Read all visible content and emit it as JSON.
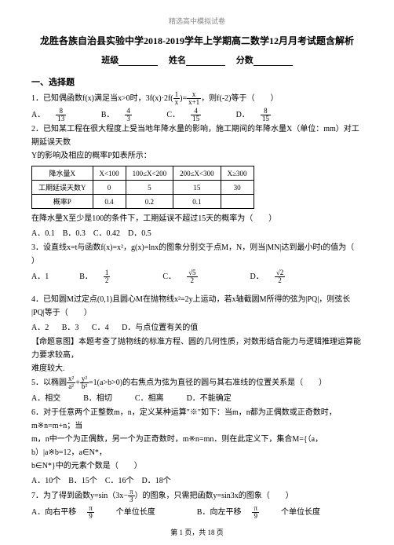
{
  "header": "精选高中模拟试卷",
  "title": "龙胜各族自治县实验中学2018-2019学年上学期高二数学12月月考试题含解析",
  "info": {
    "class_label": "班级",
    "name_label": "姓名",
    "score_label": "分数"
  },
  "section1_title": "一、选择题",
  "q1": {
    "text": "1．已知偶函数f(x)满足当x>0时，3f(x)·2f(",
    "frac1n": "1",
    "frac1d": "x",
    "mid": ")=",
    "frac2n": "x",
    "frac2d": "x+1",
    "tail": "，则f(-2)等于（　　）",
    "opts": {
      "Ap": "A．",
      "An": "8",
      "Ad": "13",
      "Bp": "B．",
      "Bn": "4",
      "Bd": "3",
      "Cp": "C．",
      "Cn": "4",
      "Cd": "15",
      "Dp": "D．",
      "Dn": "8",
      "Dd": "15"
    }
  },
  "q2": {
    "line1": "2．已知某工程在很大程度上受当地年降水量的影响，施工期间的年降水量X（单位：mm）对工期延误天数",
    "line2": "Y的影响及相应的概率P如表所示：",
    "table": {
      "h0": "降水量X",
      "h1": "X<100",
      "h2": "100≤X<200",
      "h3": "200≤X<300",
      "h4": "X≥300",
      "r2_0": "工期延误天数Y",
      "r2_1": "0",
      "r2_2": "5",
      "r2_3": "15",
      "r2_4": "30",
      "r3_0": "概率P",
      "r3_1": "0.4",
      "r3_2": "0.2",
      "r3_3": "0.1",
      "r3_4": ""
    },
    "line3": "在降水量X至少是100的条件下，工期延误不超过15天的概率为（　　）",
    "opts": "A．0.1　B．0.3　C．0.42　D．0.5"
  },
  "q3": {
    "line1": "3．设直线x=t与函数f(x)=x²，g(x)=lnx的图象分别交于点M，N，则当|MN|达到最小时t的值为（",
    "line2": "）",
    "opts": {
      "A": "A．1",
      "Bp": "B．",
      "Bn": "1",
      "Bd": "2",
      "Cp": "C．",
      "Cn": "√5",
      "Cd": "2",
      "Dp": "D．",
      "Dn": "√2",
      "Dd": "2"
    }
  },
  "q4": {
    "line1": "4．已知圆M过定点(0,1)且圆心M在抛物线x²=2y上运动，若x轴截圆M所得的弦为|PQ|，则弦长",
    "line2": "|PQ|等于（　　）",
    "opts": {
      "A": "A．2",
      "B": "B．3",
      "C": "C．4",
      "D": "D．与点位置有关的值"
    },
    "note1": "【命题意图】本题考查了抛物线的标准方程、圆的几何性质，对数形结合能力与逻辑推理运算能力要求较高，",
    "note2": "难度较大."
  },
  "q5": {
    "pre": "5．以椭圆",
    "f1n": "x²",
    "f1d": "a²",
    "plus": "+",
    "f2n": "y²",
    "f2d": "b²",
    "tail": "=1(a>b>0)的右焦点为弦为直径的圆与其右准线的位置关系是（　　）",
    "opts": {
      "A": "A．相交",
      "B": "B．相切",
      "C": "C．相离",
      "D": "D．不能确定"
    }
  },
  "q6": {
    "l1": "6．对于任意两个正整数m，n，定义某种运算\"※\"如下：当m，n都为正偶数或正奇数时，m※n=m+n；当",
    "l2": "m，n中一个为正偶数，另一个为正奇数时，m※n=mn．则在此定义下，集合M={（a，b）|a※b=12，a∈N*，",
    "l3": "b∈N*}中的元素个数是（　　）",
    "opts": "A．10个　B．15个　C．16个　D．18个"
  },
  "q7": {
    "pre": "7．为了得到函数y=sin（3x−",
    "fn": "π",
    "fd": "3",
    "mid": "）的图象，只需把函数y=sin3x的图象（　　）",
    "Ap": "A．向右平移",
    "An": "π",
    "Ad": "9",
    "At": "个单位长度",
    "Bp": "B．向左平移",
    "Bn": "π",
    "Bd": "9",
    "Bt": "个单位长度"
  },
  "footer": {
    "text": "第 1 页，共 18 页"
  }
}
